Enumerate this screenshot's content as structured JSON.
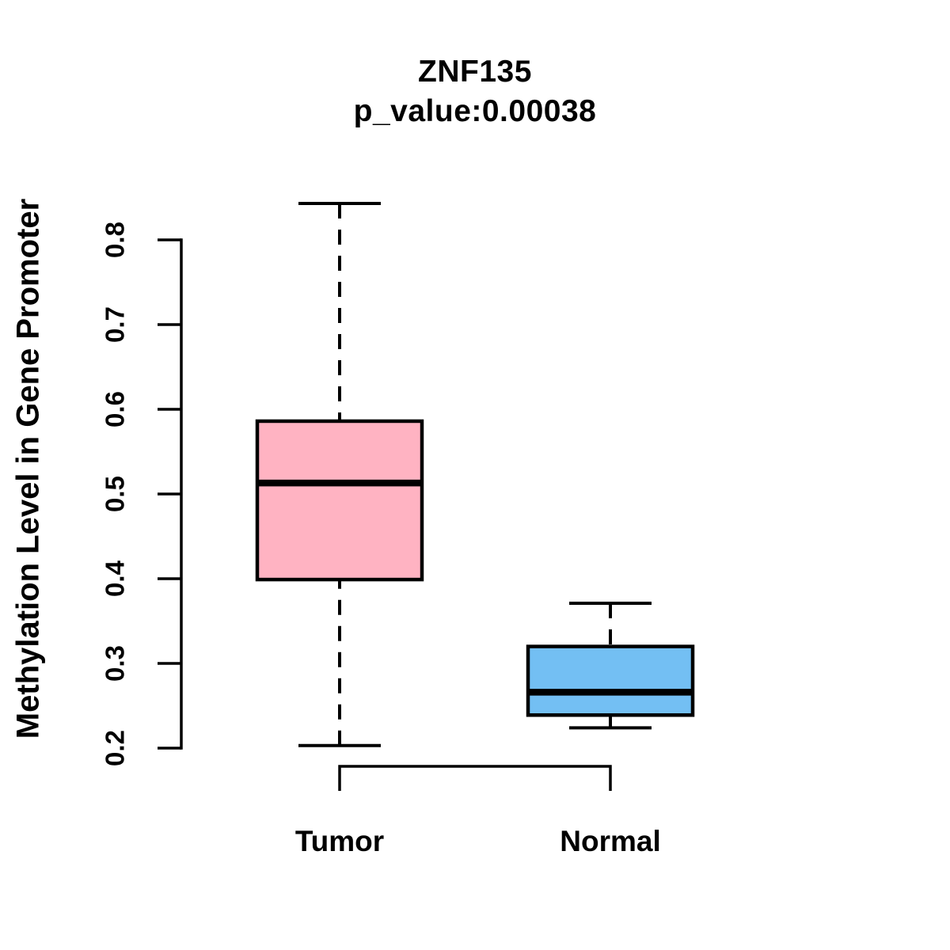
{
  "chart_data": {
    "type": "boxplot",
    "title": "ZNF135",
    "subtitle": "p_value:0.00038",
    "ylabel": "Methylation Level in Gene Promoter",
    "xlabel": "",
    "categories": [
      "Tumor",
      "Normal"
    ],
    "y_ticks": [
      0.2,
      0.3,
      0.4,
      0.5,
      0.6,
      0.7,
      0.8
    ],
    "ylim": [
      0.18,
      0.86
    ],
    "grid": "off",
    "legend": "none",
    "series": [
      {
        "name": "Tumor",
        "whisker_low": 0.203,
        "q1": 0.399,
        "median": 0.513,
        "q3": 0.586,
        "whisker_high": 0.843,
        "fill_color": "#FFB3C2",
        "stroke_color": "#000000"
      },
      {
        "name": "Normal",
        "whisker_low": 0.224,
        "q1": 0.239,
        "median": 0.266,
        "q3": 0.32,
        "whisker_high": 0.371,
        "fill_color": "#73BFF3",
        "stroke_color": "#000000"
      }
    ],
    "x_axis_bracket": {
      "present": true,
      "connects": [
        "Tumor",
        "Normal"
      ]
    },
    "colors": {
      "axis": "#000000",
      "text": "#000000",
      "background": "#ffffff"
    }
  }
}
